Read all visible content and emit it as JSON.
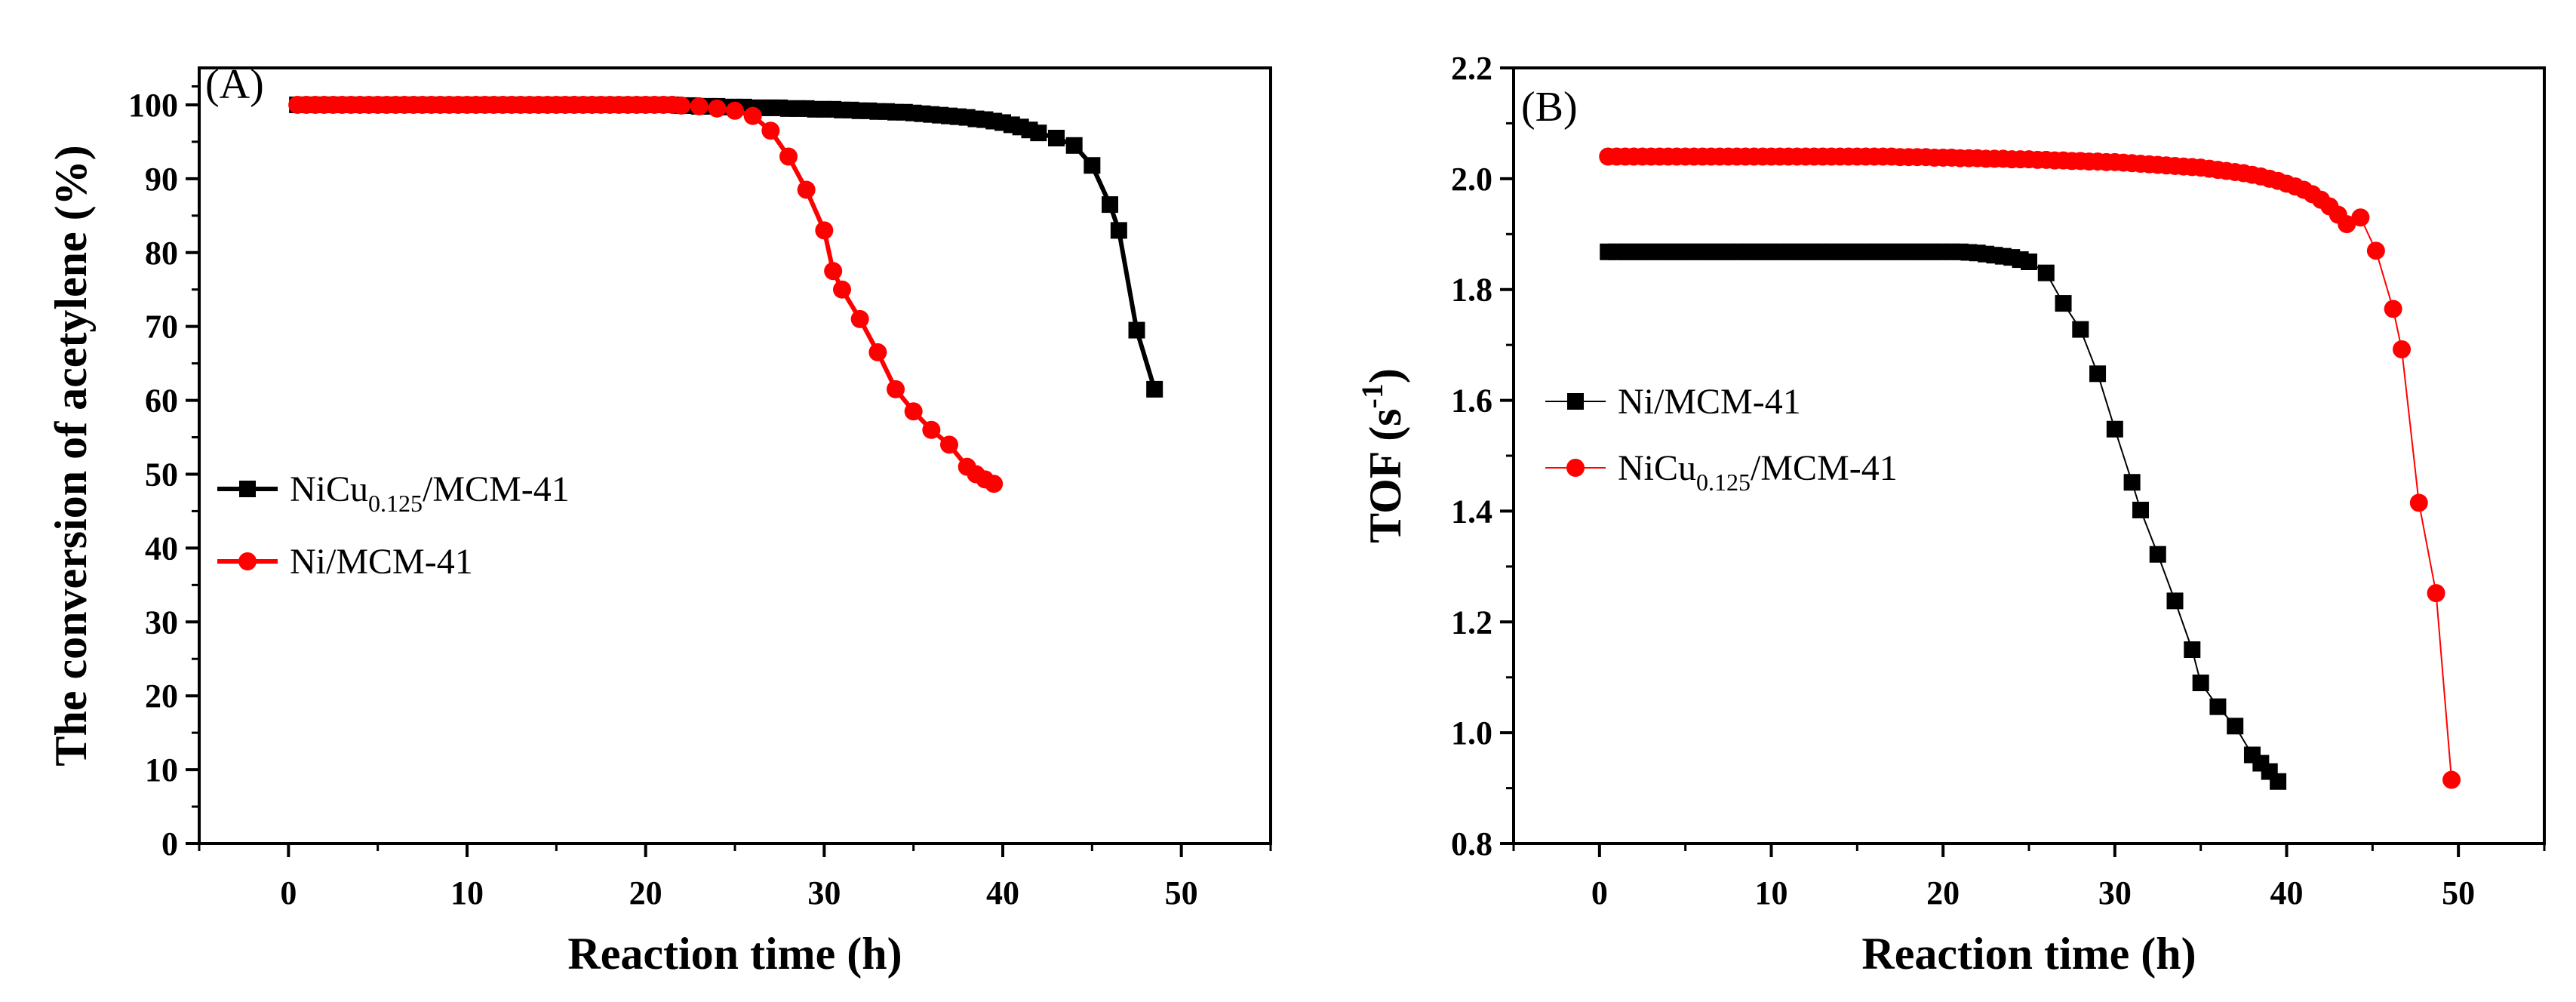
{
  "chart_data": [
    {
      "type": "line",
      "panel_label": "(A)",
      "xlabel": "Reaction time (h)",
      "ylabel": "The conversion of acetylene (%)",
      "xlim": [
        -5,
        55
      ],
      "ylim": [
        0,
        105
      ],
      "xticks": [
        0,
        10,
        20,
        30,
        40,
        50
      ],
      "yticks": [
        0,
        10,
        20,
        30,
        40,
        50,
        60,
        70,
        80,
        90,
        100
      ],
      "legend_position": "center-left",
      "series": [
        {
          "name": "NiCu0.125/MCM-41",
          "legend_main": "NiCu",
          "legend_sub": "0.125",
          "legend_tail": "/MCM-41",
          "color": "#000000",
          "marker": "square",
          "x": [
            0.5,
            1,
            1.5,
            2,
            2.5,
            3,
            3.5,
            4,
            4.5,
            5,
            5.5,
            6,
            6.5,
            7,
            7.5,
            8,
            8.5,
            9,
            9.5,
            10,
            10.5,
            11,
            11.5,
            12,
            12.5,
            13,
            13.5,
            14,
            14.5,
            15,
            15.5,
            16,
            16.5,
            17,
            17.5,
            18,
            18.5,
            19,
            19.5,
            20,
            20.5,
            21,
            21.5,
            22,
            22.5,
            23,
            23.5,
            24,
            24.5,
            25,
            25.5,
            26,
            26.5,
            27,
            27.5,
            28,
            28.5,
            29,
            29.5,
            30,
            30.5,
            31,
            31.5,
            32,
            32.5,
            33,
            33.5,
            34,
            34.5,
            35,
            35.5,
            36,
            36.5,
            37,
            37.5,
            38,
            38.5,
            39,
            39.5,
            40,
            40.5,
            41,
            41.5,
            42,
            43,
            44,
            45,
            46,
            46.5,
            47.5,
            48.5
          ],
          "y": [
            100,
            100,
            100,
            100,
            100,
            100,
            100,
            100,
            100,
            100,
            100,
            100,
            100,
            100,
            100,
            100,
            100,
            100,
            100,
            100,
            100,
            100,
            100,
            100,
            100,
            100,
            100,
            100,
            100,
            100,
            100,
            100,
            100,
            100,
            100,
            100,
            100,
            100,
            100,
            100,
            100,
            100,
            100,
            99.9,
            99.9,
            99.8,
            99.8,
            99.8,
            99.7,
            99.7,
            99.7,
            99.6,
            99.6,
            99.6,
            99.6,
            99.5,
            99.5,
            99.5,
            99.4,
            99.4,
            99.4,
            99.3,
            99.3,
            99.2,
            99.2,
            99.1,
            99.1,
            99.0,
            99.0,
            98.9,
            98.8,
            98.7,
            98.6,
            98.5,
            98.4,
            98.3,
            98.1,
            98.0,
            97.8,
            97.6,
            97.3,
            97.0,
            96.6,
            96.2,
            95.5,
            94.5,
            91.8,
            86.5,
            83.0,
            69.5,
            61.5
          ]
        },
        {
          "name": "Ni/MCM-41",
          "color": "#ff0000",
          "marker": "circle",
          "x": [
            0.5,
            1,
            1.5,
            2,
            2.5,
            3,
            3.5,
            4,
            4.5,
            5,
            5.5,
            6,
            6.5,
            7,
            7.5,
            8,
            8.5,
            9,
            9.5,
            10,
            10.5,
            11,
            11.5,
            12,
            12.5,
            13,
            13.5,
            14,
            14.5,
            15,
            15.5,
            16,
            16.5,
            17,
            17.5,
            18,
            18.5,
            19,
            19.5,
            20,
            20.5,
            21,
            21.5,
            22,
            23,
            24,
            25,
            26,
            27,
            28,
            29,
            30,
            30.5,
            31,
            32,
            33,
            34,
            35,
            36,
            37,
            38,
            38.5,
            39,
            39.5
          ],
          "y": [
            100,
            100,
            100,
            100,
            100,
            100,
            100,
            100,
            100,
            100,
            100,
            100,
            100,
            100,
            100,
            100,
            100,
            100,
            100,
            100,
            100,
            100,
            100,
            100,
            100,
            100,
            100,
            100,
            100,
            100,
            100,
            100,
            100,
            100,
            100,
            100,
            100,
            100,
            100,
            100,
            100,
            100,
            100,
            99.9,
            99.8,
            99.5,
            99.2,
            98.5,
            96.5,
            93,
            88.5,
            83,
            77.5,
            75,
            71,
            66.5,
            61.5,
            58.5,
            56,
            54,
            51,
            50,
            49.3,
            48.7
          ]
        }
      ]
    },
    {
      "type": "line",
      "panel_label": "(B)",
      "xlabel": "Reaction time (h)",
      "ylabel_main": "TOF (s",
      "ylabel_sup": "-1",
      "ylabel_tail": ")",
      "xlim": [
        -5,
        55
      ],
      "ylim": [
        0.8,
        2.2
      ],
      "xticks": [
        0,
        10,
        20,
        30,
        40,
        50
      ],
      "yticks": [
        0.8,
        1.0,
        1.2,
        1.4,
        1.6,
        1.8,
        2.0,
        2.2
      ],
      "ytick_labels": [
        "0.8",
        "1.0",
        "1.2",
        "1.4",
        "1.6",
        "1.8",
        "2.0",
        "2.2"
      ],
      "legend_position": "center-left",
      "series": [
        {
          "name": "Ni/MCM-41",
          "color": "#000000",
          "marker": "square",
          "x": [
            0.5,
            1,
            1.5,
            2,
            2.5,
            3,
            3.5,
            4,
            4.5,
            5,
            5.5,
            6,
            6.5,
            7,
            7.5,
            8,
            8.5,
            9,
            9.5,
            10,
            10.5,
            11,
            11.5,
            12,
            12.5,
            13,
            13.5,
            14,
            14.5,
            15,
            15.5,
            16,
            16.5,
            17,
            17.5,
            18,
            18.5,
            19,
            19.5,
            20,
            20.5,
            21,
            21.5,
            22,
            22.5,
            23,
            23.5,
            24,
            24.5,
            25,
            26,
            27,
            28,
            29,
            30,
            31,
            31.5,
            32.5,
            33.5,
            34.5,
            35,
            36,
            37,
            38,
            38.5,
            39,
            39.5
          ],
          "y": [
            1.868,
            1.868,
            1.868,
            1.868,
            1.868,
            1.868,
            1.868,
            1.868,
            1.868,
            1.868,
            1.868,
            1.868,
            1.868,
            1.868,
            1.868,
            1.868,
            1.868,
            1.868,
            1.868,
            1.868,
            1.868,
            1.868,
            1.868,
            1.868,
            1.868,
            1.868,
            1.868,
            1.868,
            1.868,
            1.868,
            1.868,
            1.868,
            1.868,
            1.868,
            1.868,
            1.868,
            1.868,
            1.868,
            1.868,
            1.868,
            1.868,
            1.868,
            1.867,
            1.866,
            1.864,
            1.862,
            1.86,
            1.858,
            1.854,
            1.85,
            1.83,
            1.775,
            1.728,
            1.648,
            1.548,
            1.452,
            1.402,
            1.322,
            1.238,
            1.15,
            1.09,
            1.047,
            1.012,
            0.96,
            0.945,
            0.93,
            0.912
          ]
        },
        {
          "name": "NiCu0.125/MCM-41",
          "legend_main": "NiCu",
          "legend_sub": "0.125",
          "legend_tail": "/MCM-41",
          "color": "#ff0000",
          "marker": "circle",
          "x": [
            0.5,
            1,
            1.5,
            2,
            2.5,
            3,
            3.5,
            4,
            4.5,
            5,
            5.5,
            6,
            6.5,
            7,
            7.5,
            8,
            8.5,
            9,
            9.5,
            10,
            10.5,
            11,
            11.5,
            12,
            12.5,
            13,
            13.5,
            14,
            14.5,
            15,
            15.5,
            16,
            16.5,
            17,
            17.5,
            18,
            18.5,
            19,
            19.5,
            20,
            20.5,
            21,
            21.5,
            22,
            22.5,
            23,
            23.5,
            24,
            24.5,
            25,
            25.5,
            26,
            26.5,
            27,
            27.5,
            28,
            28.5,
            29,
            29.5,
            30,
            30.5,
            31,
            31.5,
            32,
            32.5,
            33,
            33.5,
            34,
            34.5,
            35,
            35.5,
            36,
            36.5,
            37,
            37.5,
            38,
            38.5,
            39,
            39.5,
            40,
            40.5,
            41,
            41.5,
            42,
            42.5,
            43,
            43.5,
            44.3,
            45.2,
            46.2,
            46.7,
            47.7,
            48.7,
            49.6
          ],
          "y": [
            2.04,
            2.04,
            2.04,
            2.04,
            2.04,
            2.04,
            2.04,
            2.04,
            2.04,
            2.04,
            2.04,
            2.04,
            2.04,
            2.04,
            2.04,
            2.04,
            2.04,
            2.04,
            2.04,
            2.04,
            2.04,
            2.04,
            2.04,
            2.04,
            2.04,
            2.04,
            2.04,
            2.04,
            2.04,
            2.04,
            2.04,
            2.04,
            2.04,
            2.04,
            2.039,
            2.039,
            2.039,
            2.039,
            2.038,
            2.038,
            2.038,
            2.037,
            2.037,
            2.037,
            2.036,
            2.036,
            2.036,
            2.035,
            2.035,
            2.035,
            2.034,
            2.034,
            2.033,
            2.033,
            2.032,
            2.032,
            2.031,
            2.031,
            2.03,
            2.03,
            2.029,
            2.028,
            2.027,
            2.026,
            2.025,
            2.024,
            2.023,
            2.022,
            2.021,
            2.02,
            2.018,
            2.016,
            2.014,
            2.012,
            2.01,
            2.007,
            2.004,
            2.0,
            1.996,
            1.991,
            1.986,
            1.98,
            1.972,
            1.962,
            1.95,
            1.935,
            1.918,
            1.93,
            1.87,
            1.765,
            1.692,
            1.415,
            1.252,
            0.915
          ]
        }
      ]
    }
  ]
}
